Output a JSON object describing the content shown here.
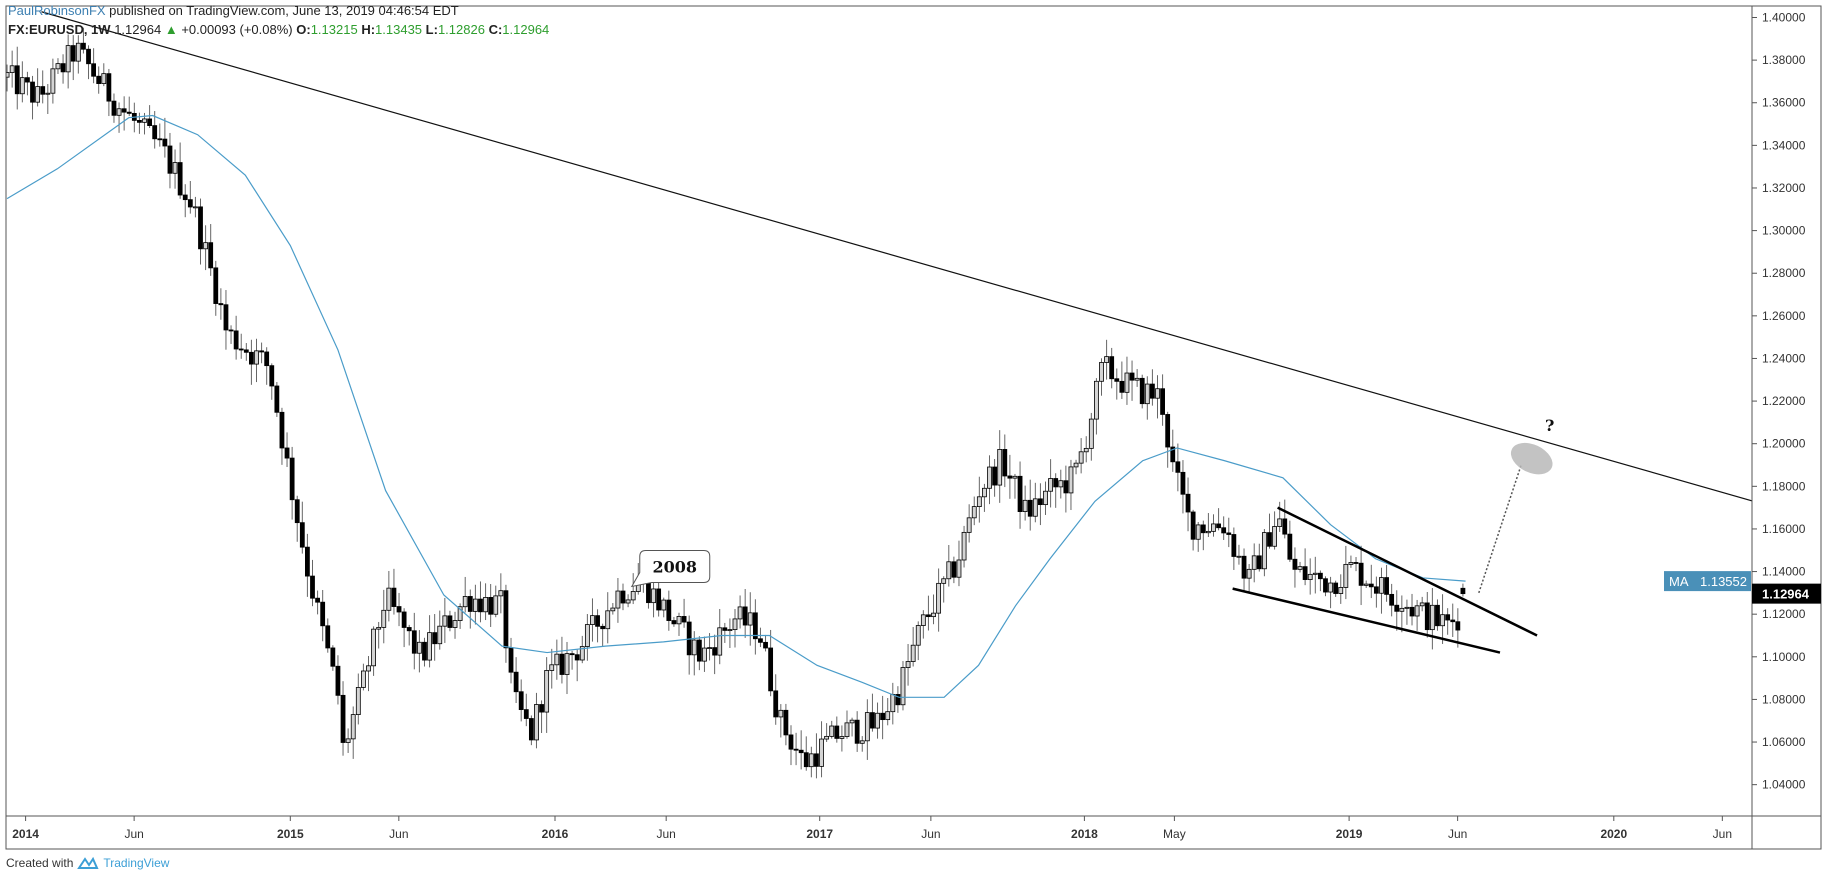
{
  "header": {
    "author": "PaulRobinsonFX",
    "published": " published on TradingView.com, June 13, 2019 04:46:54 EDT",
    "symbol": "FX:EURUSD, 1W",
    "last": "1.12964",
    "change": "+0.00093 (+0.08%)",
    "o_label": "O:",
    "o": "1.13215",
    "h_label": "H:",
    "h": "1.13435",
    "l_label": "L:",
    "l": "1.12826",
    "c_label": "C:",
    "c": "1.12964"
  },
  "footer": {
    "created": "Created with",
    "brand": "TradingView"
  },
  "colors": {
    "bull": "#d4d4d4",
    "bear": "#000000",
    "ma": "#4a9cc9",
    "ma_label_bg": "#4a90b8",
    "price_label_bg": "#000000",
    "axis_text": "#333333"
  },
  "chart_data": {
    "type": "candlestick",
    "title": "FX:EURUSD, 1W",
    "xlabel": "",
    "ylabel": "",
    "ylim": [
      1.03,
      1.405
    ],
    "xlim": [
      2013.92,
      2020.75
    ],
    "grid": false,
    "interval": "weekly",
    "close_path": [
      [
        2013.93,
        1.372
      ],
      [
        2014.05,
        1.362
      ],
      [
        2014.19,
        1.385
      ],
      [
        2014.34,
        1.36
      ],
      [
        2014.52,
        1.337
      ],
      [
        2014.63,
        1.312
      ],
      [
        2014.72,
        1.272
      ],
      [
        2014.76,
        1.252
      ],
      [
        2014.92,
        1.236
      ],
      [
        2015.0,
        1.182
      ],
      [
        2015.07,
        1.138
      ],
      [
        2015.18,
        1.082
      ],
      [
        2015.2,
        1.056
      ],
      [
        2015.27,
        1.085
      ],
      [
        2015.36,
        1.128
      ],
      [
        2015.49,
        1.1
      ],
      [
        2015.67,
        1.128
      ],
      [
        2015.8,
        1.124
      ],
      [
        2015.84,
        1.08
      ],
      [
        2015.91,
        1.064
      ],
      [
        2015.97,
        1.09
      ],
      [
        2016.11,
        1.107
      ],
      [
        2016.24,
        1.13
      ],
      [
        2016.33,
        1.136
      ],
      [
        2016.44,
        1.118
      ],
      [
        2016.55,
        1.1
      ],
      [
        2016.68,
        1.118
      ],
      [
        2016.77,
        1.113
      ],
      [
        2016.85,
        1.07
      ],
      [
        2016.94,
        1.05
      ],
      [
        2017.07,
        1.064
      ],
      [
        2017.21,
        1.068
      ],
      [
        2017.3,
        1.085
      ],
      [
        2017.38,
        1.113
      ],
      [
        2017.52,
        1.145
      ],
      [
        2017.6,
        1.178
      ],
      [
        2017.69,
        1.192
      ],
      [
        2017.78,
        1.167
      ],
      [
        2017.87,
        1.178
      ],
      [
        2017.96,
        1.184
      ],
      [
        2018.0,
        1.2
      ],
      [
        2018.07,
        1.236
      ],
      [
        2018.18,
        1.226
      ],
      [
        2018.29,
        1.222
      ],
      [
        2018.33,
        1.19
      ],
      [
        2018.4,
        1.162
      ],
      [
        2018.53,
        1.162
      ],
      [
        2018.62,
        1.135
      ],
      [
        2018.73,
        1.167
      ],
      [
        2018.79,
        1.14
      ],
      [
        2018.93,
        1.135
      ],
      [
        2019.01,
        1.142
      ],
      [
        2019.15,
        1.13
      ],
      [
        2019.28,
        1.12
      ],
      [
        2019.37,
        1.115
      ],
      [
        2019.41,
        1.119
      ],
      [
        2019.44,
        1.12964
      ]
    ],
    "moving_average": {
      "name": "MA",
      "last": "1.13552",
      "path": [
        [
          2013.93,
          1.315
        ],
        [
          2014.12,
          1.329
        ],
        [
          2014.39,
          1.353
        ],
        [
          2014.48,
          1.354
        ],
        [
          2014.65,
          1.345
        ],
        [
          2014.83,
          1.326
        ],
        [
          2015.0,
          1.293
        ],
        [
          2015.18,
          1.244
        ],
        [
          2015.36,
          1.178
        ],
        [
          2015.58,
          1.129
        ],
        [
          2015.8,
          1.105
        ],
        [
          2015.97,
          1.102
        ],
        [
          2016.19,
          1.105
        ],
        [
          2016.41,
          1.107
        ],
        [
          2016.63,
          1.11
        ],
        [
          2016.81,
          1.11
        ],
        [
          2016.99,
          1.096
        ],
        [
          2017.16,
          1.088
        ],
        [
          2017.3,
          1.081
        ],
        [
          2017.47,
          1.081
        ],
        [
          2017.6,
          1.096
        ],
        [
          2017.74,
          1.124
        ],
        [
          2017.87,
          1.146
        ],
        [
          2018.04,
          1.173
        ],
        [
          2018.22,
          1.192
        ],
        [
          2018.35,
          1.198
        ],
        [
          2018.53,
          1.192
        ],
        [
          2018.75,
          1.184
        ],
        [
          2018.93,
          1.162
        ],
        [
          2019.1,
          1.146
        ],
        [
          2019.28,
          1.137
        ],
        [
          2019.44,
          1.1355
        ]
      ]
    },
    "last_price": "1.12964",
    "y_ticks": [
      "1.04000",
      "1.06000",
      "1.08000",
      "1.10000",
      "1.12000",
      "1.14000",
      "1.16000",
      "1.18000",
      "1.20000",
      "1.22000",
      "1.24000",
      "1.26000",
      "1.28000",
      "1.30000",
      "1.32000",
      "1.34000",
      "1.36000",
      "1.38000",
      "1.40000"
    ],
    "x_ticks": [
      {
        "label": "2014",
        "t": 2014.0,
        "bold": true
      },
      {
        "label": "Jun",
        "t": 2014.41
      },
      {
        "label": "2015",
        "t": 2015.0,
        "bold": true
      },
      {
        "label": "Jun",
        "t": 2015.41
      },
      {
        "label": "2016",
        "t": 2016.0,
        "bold": true
      },
      {
        "label": "Jun",
        "t": 2016.42
      },
      {
        "label": "2017",
        "t": 2017.0,
        "bold": true
      },
      {
        "label": "Jun",
        "t": 2017.42
      },
      {
        "label": "2018",
        "t": 2018.0,
        "bold": true
      },
      {
        "label": "May",
        "t": 2018.34
      },
      {
        "label": "2019",
        "t": 2019.0,
        "bold": true
      },
      {
        "label": "Jun",
        "t": 2019.41
      },
      {
        "label": "2020",
        "t": 2020.0,
        "bold": true
      },
      {
        "label": "Jun",
        "t": 2020.41
      }
    ],
    "drawings": {
      "long_trendline": {
        "from": [
          2014.06,
          1.4027
        ],
        "to": [
          2020.78,
          1.164
        ]
      },
      "wedge_upper": {
        "from": [
          2018.73,
          1.17
        ],
        "to": [
          2019.71,
          1.11
        ]
      },
      "wedge_lower": {
        "from": [
          2018.56,
          1.132
        ],
        "to": [
          2019.57,
          1.102
        ]
      },
      "projection_arrow": {
        "from": [
          2019.49,
          1.13
        ],
        "to": [
          2019.65,
          1.19
        ]
      },
      "target_zone": {
        "center": [
          2019.69,
          1.193
        ]
      },
      "callout": {
        "text": "2008",
        "anchor": [
          2016.29,
          1.133
        ]
      },
      "question": {
        "text": "?",
        "at": [
          2019.74,
          1.206
        ]
      }
    }
  }
}
